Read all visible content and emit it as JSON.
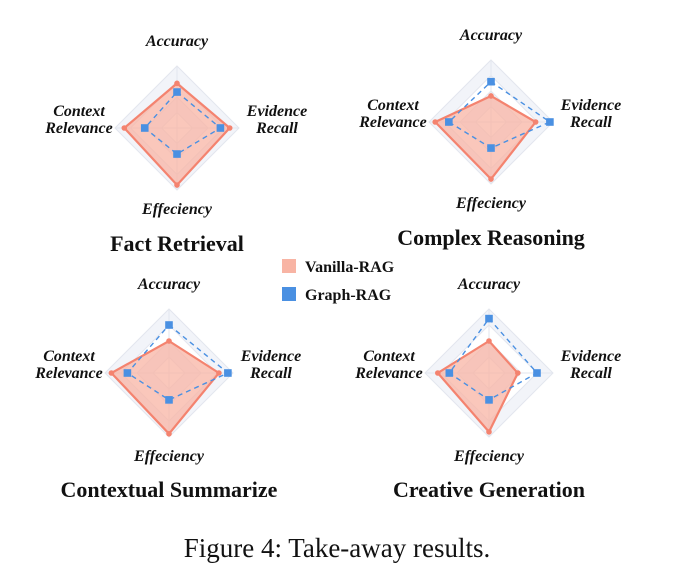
{
  "caption": "Figure 4: Take-away results.",
  "colors": {
    "vanilla": "#f4836f",
    "vanilla_fill": "#f8b4a4",
    "graph": "#4a90e2",
    "grid": "#e3e6ee",
    "web_fill": "#f2f4f9"
  },
  "legend": {
    "vanilla": "Vanilla-RAG",
    "graph": "Graph-RAG"
  },
  "chart_data": [
    {
      "type": "radar",
      "title": "Fact Retrieval",
      "axes": [
        "Accuracy",
        "Evidence Recall",
        "Effeciency",
        "Context Relevance"
      ],
      "axis_lines": [
        [
          "Accuracy"
        ],
        [
          "Evidence",
          "Recall"
        ],
        [
          "Effeciency"
        ],
        [
          "Context",
          "Relevance"
        ]
      ],
      "rmax": 1.0,
      "series": [
        {
          "name": "Vanilla-RAG",
          "values": [
            0.72,
            0.85,
            0.92,
            0.85
          ]
        },
        {
          "name": "Graph-RAG",
          "values": [
            0.58,
            0.7,
            0.42,
            0.52
          ]
        }
      ]
    },
    {
      "type": "radar",
      "title": "Complex Reasoning",
      "axes": [
        "Accuracy",
        "Evidence Recall",
        "Effeciency",
        "Context Relevance"
      ],
      "axis_lines": [
        [
          "Accuracy"
        ],
        [
          "Evidence",
          "Recall"
        ],
        [
          "Effeciency"
        ],
        [
          "Context",
          "Relevance"
        ]
      ],
      "rmax": 1.0,
      "series": [
        {
          "name": "Vanilla-RAG",
          "values": [
            0.42,
            0.72,
            0.92,
            0.9
          ]
        },
        {
          "name": "Graph-RAG",
          "values": [
            0.65,
            0.95,
            0.42,
            0.68
          ]
        }
      ]
    },
    {
      "type": "radar",
      "title": "Contextual Summarize",
      "axes": [
        "Accuracy",
        "Evidence Recall",
        "Effeciency",
        "Context Relevance"
      ],
      "axis_lines": [
        [
          "Accuracy"
        ],
        [
          "Evidence",
          "Recall"
        ],
        [
          "Effeciency"
        ],
        [
          "Context",
          "Relevance"
        ]
      ],
      "rmax": 1.0,
      "series": [
        {
          "name": "Vanilla-RAG",
          "values": [
            0.5,
            0.78,
            0.95,
            0.9
          ]
        },
        {
          "name": "Graph-RAG",
          "values": [
            0.75,
            0.92,
            0.42,
            0.65
          ]
        }
      ]
    },
    {
      "type": "radar",
      "title": "Creative Generation",
      "axes": [
        "Accuracy",
        "Evidence Recall",
        "Effeciency",
        "Context Relevance"
      ],
      "axis_lines": [
        [
          "Accuracy"
        ],
        [
          "Evidence",
          "Recall"
        ],
        [
          "Effeciency"
        ],
        [
          "Context",
          "Relevance"
        ]
      ],
      "rmax": 1.0,
      "series": [
        {
          "name": "Vanilla-RAG",
          "values": [
            0.5,
            0.45,
            0.92,
            0.8
          ]
        },
        {
          "name": "Graph-RAG",
          "values": [
            0.85,
            0.75,
            0.42,
            0.62
          ]
        }
      ]
    }
  ]
}
